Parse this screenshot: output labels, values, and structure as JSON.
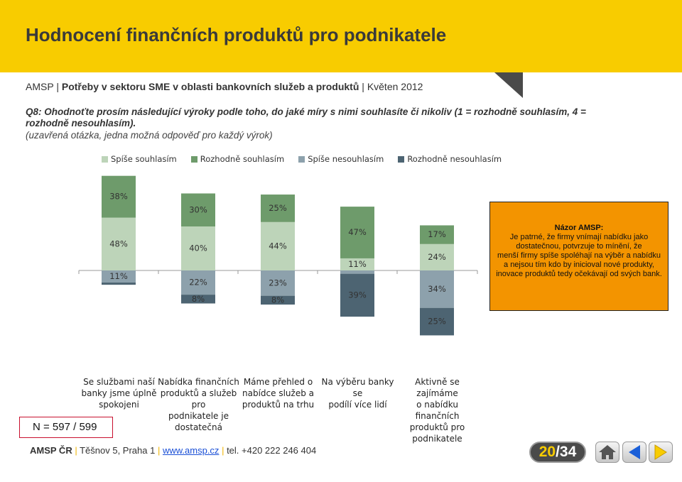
{
  "header": {
    "title": "Hodnocení finančních produktů pro podnikatele"
  },
  "subtitle": {
    "org": "AMSP",
    "topic": "Potřeby v sektoru SME v oblasti bankovních služeb a produktů",
    "date": "Květen 2012"
  },
  "question": {
    "text": "Q8: Ohodnoťte prosím následující výroky podle toho, do jaké míry s nimi souhlasíte či nikoliv (1 = rozhodně souhlasím, 4 = rozhodně nesouhlasím).",
    "note": "(uzavřená otázka, jedna možná odpověď pro každý výrok)"
  },
  "chart_data": {
    "type": "bar",
    "stacked": "diverging",
    "categories": [
      "Se službami naší banky jsme úplně spokojeni",
      "Nabídka finančních produktů a služeb pro podnikatele je dostatečná",
      "Máme přehled o nabídce služeb a produktů na trhu",
      "Na výběru banky se podílí více lidí",
      "Aktivně se zajímáme o nabídku finančních produktů pro podnikatele"
    ],
    "categories_lines": [
      [
        "Se službami naší",
        "banky jsme úplně",
        "spokojeni"
      ],
      [
        "Nabídka finančních",
        "produktů a služeb pro",
        "podnikatele je",
        "dostatečná"
      ],
      [
        "Máme přehled o",
        "nabídce služeb a",
        "produktů na trhu"
      ],
      [
        "Na výběru banky se",
        "podílí více lidí"
      ],
      [
        "Aktivně se zajímáme",
        "o nabídku finančních",
        "produktů pro",
        "podnikatele"
      ]
    ],
    "series": [
      {
        "name": "Spíše souhlasím",
        "color": "#bdd4b9",
        "values": [
          48,
          40,
          44,
          11,
          24
        ]
      },
      {
        "name": "Rozhodně souhlasím",
        "color": "#6e9b6b",
        "values": [
          38,
          30,
          25,
          47,
          17
        ]
      },
      {
        "name": "Spíše nesouhlasím",
        "color": "#8da1ac",
        "values": [
          11,
          22,
          23,
          3,
          34
        ]
      },
      {
        "name": "Rozhodně nesouhlasím",
        "color": "#4d6472",
        "values": [
          2,
          8,
          8,
          39,
          25
        ]
      }
    ],
    "data_labels": [
      [
        "48%",
        "40%",
        "44%",
        "11%",
        "24%"
      ],
      [
        "38%",
        "30%",
        "25%",
        "47%",
        "17%"
      ],
      [
        "11%",
        "22%",
        "23%",
        "",
        "34%"
      ],
      [
        "",
        "8%",
        "8%",
        "39%",
        "25%"
      ]
    ],
    "legend_position": "top",
    "grid": false
  },
  "note": {
    "title": "Názor AMSP:",
    "lines": [
      "Je patrné, že firmy vnímají nabídku jako",
      "dostatečnou, potvrzuje to mínění, že",
      "menší firmy spíše spoléhají na výběr a nabídku",
      "a nejsou tím kdo by inicioval nové produkty,",
      "inovace produktů tedy očekávají od svých bank."
    ]
  },
  "sample": {
    "label": "N = 597 / 599"
  },
  "footer": {
    "org": "AMSP ČR",
    "address": "Těšnov 5, Praha 1",
    "website": "www.amsp.cz",
    "phone": "tel. +420 222 246 404"
  },
  "pagination": {
    "current": "20",
    "total": "/34"
  },
  "icons": {
    "home": "home-icon",
    "prev": "arrow-left-icon",
    "next": "arrow-right-icon"
  },
  "colors": {
    "brand_yellow": "#f8cc00",
    "note_orange": "#f39400"
  }
}
